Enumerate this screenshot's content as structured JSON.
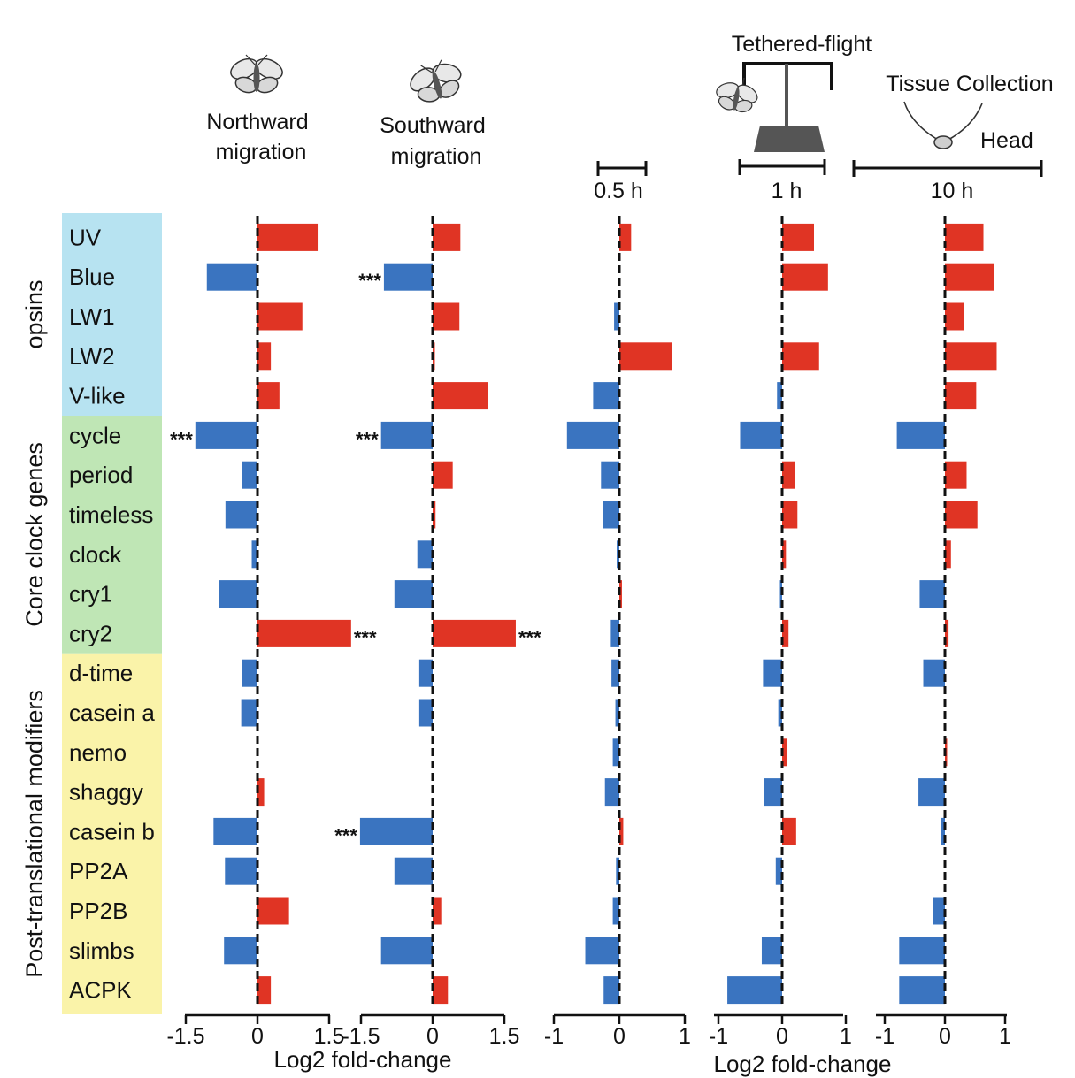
{
  "header": {
    "northward": [
      "Northward",
      "migration"
    ],
    "southward": [
      "Southward",
      "migration"
    ],
    "tethered_flight": "Tethered-flight",
    "tissue_collection": "Tissue Collection",
    "head": "Head",
    "durations": [
      "0.5 h",
      "1 h",
      "10 h"
    ]
  },
  "groups": [
    {
      "label": "opsins",
      "color": "#b7e3f1",
      "genes": [
        "UV",
        "Blue",
        "LW1",
        "LW2",
        "V-like"
      ]
    },
    {
      "label": "Core clock genes",
      "color": "#bfe6b5",
      "genes": [
        "cycle",
        "period",
        "timeless",
        "clock",
        "cry1",
        "cry2"
      ]
    },
    {
      "label": "Post-translational modifiers",
      "color": "#faf3a9",
      "genes": [
        "d-time",
        "casein a",
        "nemo",
        "shaggy",
        "casein b",
        "PP2A",
        "PP2B",
        "slimbs",
        "ACPK"
      ]
    }
  ],
  "colors": {
    "positive": "#e03424",
    "negative": "#3a74c0"
  },
  "significance_mark": "***",
  "chart_data": [
    {
      "type": "bar",
      "orientation": "horizontal",
      "panel": "Northward migration",
      "categories": [
        "UV",
        "Blue",
        "LW1",
        "LW2",
        "V-like",
        "cycle",
        "period",
        "timeless",
        "clock",
        "cry1",
        "cry2",
        "d-time",
        "casein a",
        "nemo",
        "shaggy",
        "casein b",
        "PP2A",
        "PP2B",
        "slimbs",
        "ACPK"
      ],
      "values": [
        1.26,
        -1.06,
        0.94,
        0.28,
        0.46,
        -1.3,
        -0.32,
        -0.67,
        -0.12,
        -0.8,
        1.96,
        -0.32,
        -0.34,
        0,
        0.14,
        -0.92,
        -0.68,
        0.66,
        -0.7,
        0.28
      ],
      "significant": [
        "cycle",
        "cry2"
      ],
      "xticks": [
        -1.5,
        0,
        1.5
      ],
      "xtick_labels": [
        "-1.5",
        "0",
        "1.5"
      ],
      "xlim": [
        -1.5,
        1.5
      ]
    },
    {
      "type": "bar",
      "orientation": "horizontal",
      "panel": "Southward migration",
      "categories": [
        "UV",
        "Blue",
        "LW1",
        "LW2",
        "V-like",
        "cycle",
        "period",
        "timeless",
        "clock",
        "cry1",
        "cry2",
        "d-time",
        "casein a",
        "nemo",
        "shaggy",
        "casein b",
        "PP2A",
        "PP2B",
        "slimbs",
        "ACPK"
      ],
      "values": [
        0.58,
        -1.02,
        0.56,
        0.04,
        1.16,
        -1.08,
        0.42,
        0.06,
        -0.32,
        -0.8,
        1.74,
        -0.28,
        -0.28,
        0,
        0,
        -1.52,
        -0.8,
        0.18,
        -1.08,
        0.32
      ],
      "significant": [
        "Blue",
        "cycle",
        "cry2",
        "casein b"
      ],
      "xticks": [
        -1.5,
        0,
        1.5
      ],
      "xtick_labels": [
        "-1.5",
        "0",
        "1.5"
      ],
      "xlim": [
        -1.5,
        1.5
      ]
    },
    {
      "type": "bar",
      "orientation": "horizontal",
      "panel": "Tethered-flight 0.5 h",
      "categories": [
        "UV",
        "Blue",
        "LW1",
        "LW2",
        "V-like",
        "cycle",
        "period",
        "timeless",
        "clock",
        "cry1",
        "cry2",
        "d-time",
        "casein a",
        "nemo",
        "shaggy",
        "casein b",
        "PP2A",
        "PP2B",
        "slimbs",
        "ACPK"
      ],
      "values": [
        0.18,
        0,
        -0.08,
        0.8,
        -0.4,
        -0.8,
        -0.28,
        -0.25,
        -0.04,
        0.04,
        -0.13,
        -0.12,
        -0.06,
        -0.1,
        -0.22,
        0.06,
        -0.05,
        -0.1,
        -0.52,
        -0.24
      ],
      "significant": [],
      "xticks": [
        -1,
        0,
        1
      ],
      "xtick_labels": [
        "-1",
        "0",
        "1"
      ],
      "xlim": [
        -1,
        1
      ]
    },
    {
      "type": "bar",
      "orientation": "horizontal",
      "panel": "Tethered-flight 1 h",
      "categories": [
        "UV",
        "Blue",
        "LW1",
        "LW2",
        "V-like",
        "cycle",
        "period",
        "timeless",
        "clock",
        "cry1",
        "cry2",
        "d-time",
        "casein a",
        "nemo",
        "shaggy",
        "casein b",
        "PP2A",
        "PP2B",
        "slimbs",
        "ACPK"
      ],
      "values": [
        0.5,
        0.72,
        0,
        0.58,
        -0.08,
        -0.66,
        0.2,
        0.24,
        0.06,
        -0.02,
        0.1,
        -0.3,
        -0.06,
        0.08,
        -0.28,
        0.22,
        -0.1,
        0,
        -0.32,
        -0.86
      ],
      "significant": [],
      "xticks": [
        -1,
        0,
        1
      ],
      "xtick_labels": [
        "-1",
        "0",
        "1"
      ],
      "xlim": [
        -1,
        1
      ]
    },
    {
      "type": "bar",
      "orientation": "horizontal",
      "panel": "Tissue Collection 10 h",
      "categories": [
        "UV",
        "Blue",
        "LW1",
        "LW2",
        "V-like",
        "cycle",
        "period",
        "timeless",
        "clock",
        "cry1",
        "cry2",
        "d-time",
        "casein a",
        "nemo",
        "shaggy",
        "casein b",
        "PP2A",
        "PP2B",
        "slimbs",
        "ACPK"
      ],
      "values": [
        0.64,
        0.82,
        0.32,
        0.86,
        0.52,
        -0.8,
        0.36,
        0.54,
        0.1,
        -0.42,
        0.06,
        -0.36,
        0,
        0.02,
        -0.44,
        -0.06,
        0,
        -0.2,
        -0.76,
        -0.76
      ],
      "significant": [],
      "xticks": [
        -1,
        0,
        1
      ],
      "xtick_labels": [
        "-1",
        "0",
        "1"
      ],
      "xlim": [
        -1,
        1
      ]
    }
  ],
  "xlabel": "Log2 fold-change"
}
